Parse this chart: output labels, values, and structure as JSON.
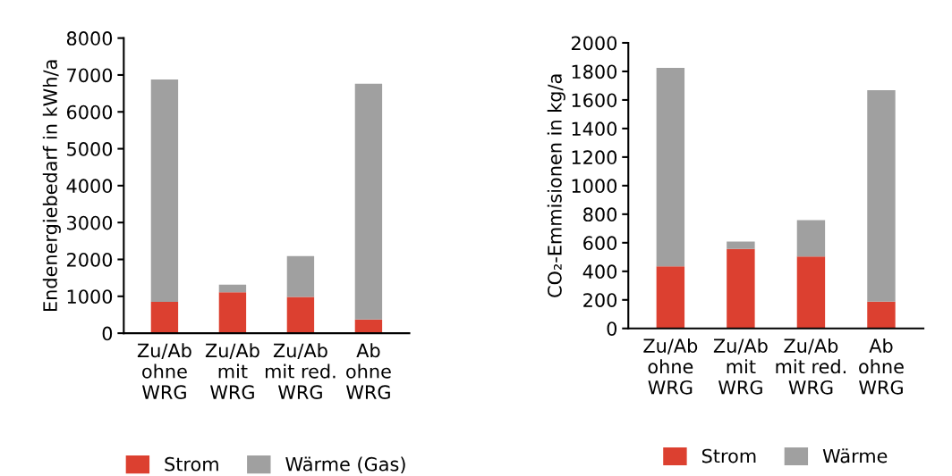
{
  "chart_data": [
    {
      "type": "bar",
      "stacked": true,
      "ylabel": "Endenergiebedarf in kWh/a",
      "categories": [
        "Zu/Ab\nohne\nWRG",
        "Zu/Ab\nmit\nWRG",
        "Zu/Ab\nmit red.\nWRG",
        "Ab\nohne\nWRG"
      ],
      "ylim": [
        0,
        8000
      ],
      "yticks": [
        0,
        1000,
        2000,
        3000,
        4000,
        5000,
        6000,
        7000,
        8000
      ],
      "grid": false,
      "legend": "bottom",
      "series": [
        {
          "name": "Strom",
          "color": "#dc4030",
          "values": [
            850,
            1110,
            980,
            370
          ]
        },
        {
          "name": "Wärme (Gas)",
          "color": "#a0a0a0",
          "values": [
            6030,
            205,
            1110,
            6390
          ]
        }
      ]
    },
    {
      "type": "bar",
      "stacked": true,
      "ylabel": "CO₂-Emmisionen in kg/a",
      "categories": [
        "Zu/Ab\nohne\nWRG",
        "Zu/Ab\nmit\nWRG",
        "Zu/Ab\nmit red.\nWRG",
        "Ab\nohne\nWRG"
      ],
      "ylim": [
        0,
        2000
      ],
      "yticks": [
        0,
        200,
        400,
        600,
        800,
        1000,
        1200,
        1400,
        1600,
        1800,
        2000
      ],
      "grid": false,
      "legend": "bottom",
      "series": [
        {
          "name": "Strom",
          "color": "#dc4030",
          "values": [
            435,
            556,
            504,
            188
          ]
        },
        {
          "name": "Wärme",
          "color": "#a0a0a0",
          "values": [
            1390,
            52,
            254,
            1480
          ]
        }
      ]
    }
  ]
}
